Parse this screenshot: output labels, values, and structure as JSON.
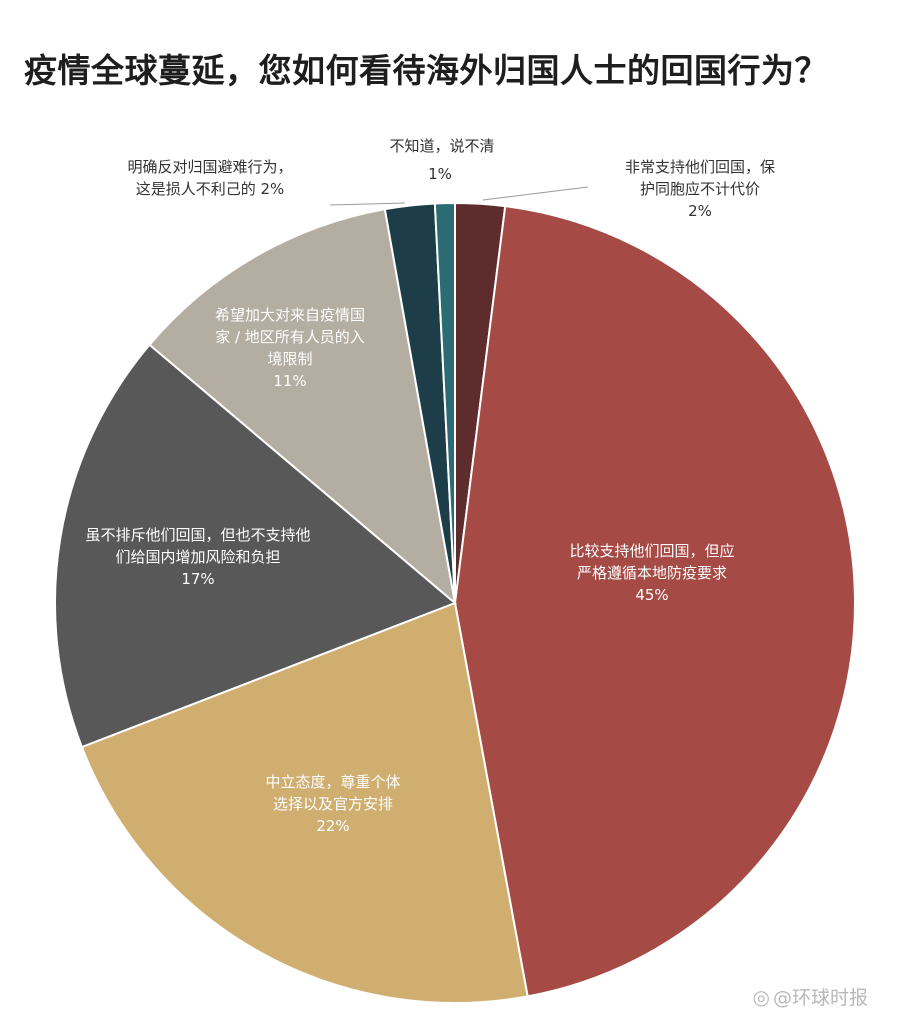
{
  "chart_data": {
    "type": "pie",
    "title": "疫情全球蔓延，您如何看待海外归国人士的回国行为？",
    "slices": [
      {
        "lines": [
          "非常支持他们回国，保",
          "护同胞应不计代价"
        ],
        "pct_label": "2%",
        "value": 2,
        "color": "#5e2c2c"
      },
      {
        "lines": [
          "比较支持他们回国，但应",
          "严格遵循本地防疫要求"
        ],
        "pct_label": "45%",
        "value": 45,
        "color": "#a54a45"
      },
      {
        "lines": [
          "中立态度，尊重个体",
          "选择以及官方安排"
        ],
        "pct_label": "22%",
        "value": 22,
        "color": "#cfae70"
      },
      {
        "lines": [
          "虽不排斥他们回国，但也不支持他",
          "们给国内增加风险和负担"
        ],
        "pct_label": "17%",
        "value": 17,
        "color": "#585858"
      },
      {
        "lines": [
          "希望加大对来自疫情国",
          "家 / 地区所有人员的入",
          "境限制"
        ],
        "pct_label": "11%",
        "value": 11,
        "color": "#b3ada2"
      },
      {
        "lines": [
          "明确反对归国避难行为，",
          "这是损人不利己的 2%"
        ],
        "pct_label": "",
        "value": 2,
        "color": "#1d3d48"
      },
      {
        "lines": [
          "不知道，说不清"
        ],
        "pct_label": "1%",
        "value": 0.8,
        "color": "#2b6b74"
      }
    ]
  },
  "watermark": {
    "icon": "weibo-icon",
    "text": "@环球时报"
  }
}
